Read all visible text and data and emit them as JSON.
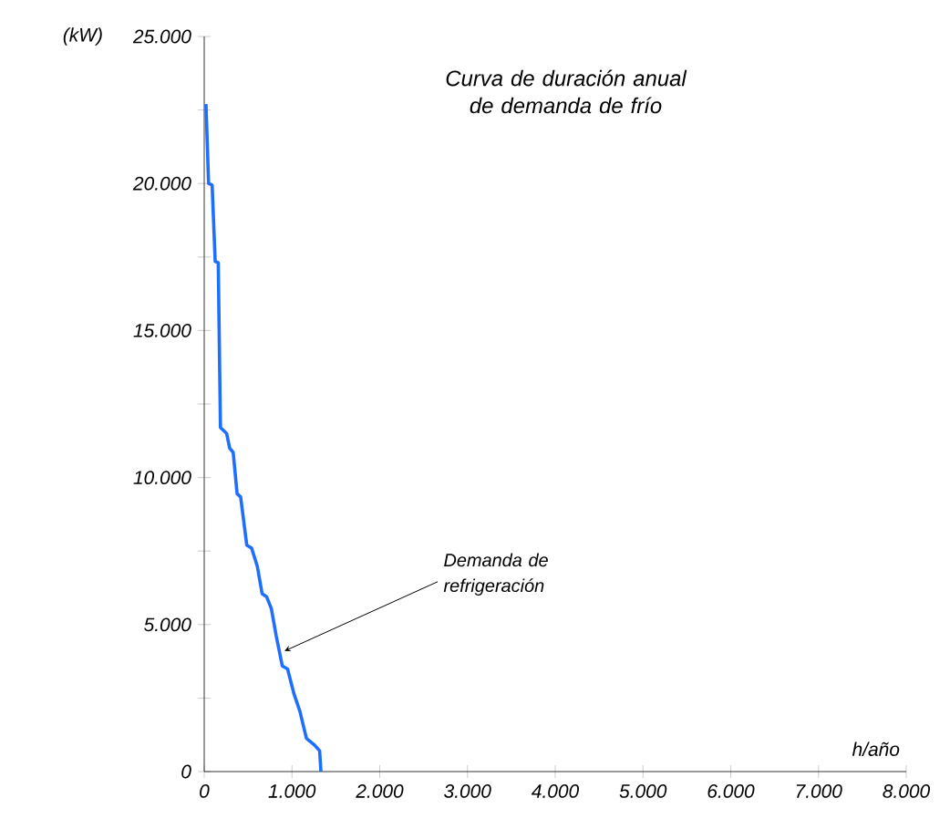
{
  "chart_data": {
    "type": "line",
    "title": "Curva de duración anual de demanda de frío",
    "xlabel": "h/año",
    "ylabel": "(kW)",
    "x": [
      20,
      50,
      90,
      125,
      160,
      180,
      185,
      255,
      290,
      330,
      375,
      415,
      485,
      540,
      605,
      660,
      710,
      765,
      820,
      890,
      950,
      1020,
      1090,
      1165,
      1250,
      1315,
      1330
    ],
    "series": [
      {
        "color": "#1e6fff",
        "values": [
          22700,
          20000,
          19950,
          17350,
          17300,
          12800,
          11700,
          11500,
          11000,
          10850,
          9450,
          9340,
          7700,
          7600,
          6980,
          6050,
          5950,
          5540,
          4620,
          3590,
          3490,
          2670,
          2050,
          1130,
          920,
          710,
          0
        ]
      }
    ],
    "annotations": [
      {
        "text": "Demanda de refrigeración",
        "x": 915,
        "y": 4100
      }
    ],
    "xlim": [
      0,
      8000
    ],
    "ylim": [
      0,
      25000
    ],
    "xticks": [
      0,
      {
        "value": 1000,
        "label": "1.000"
      },
      {
        "value": 2000,
        "label": "2.000"
      },
      {
        "value": 3000,
        "label": "3.000"
      },
      {
        "value": 4000,
        "label": "4.000"
      },
      {
        "value": 5000,
        "label": "5.000"
      },
      {
        "value": 6000,
        "label": "6.000"
      },
      {
        "value": 7000,
        "label": "7.000"
      },
      {
        "value": 8000,
        "label": "8.000"
      }
    ],
    "yticks": [
      0,
      {
        "value": 2500,
        "label": null
      },
      {
        "value": 5000,
        "label": "5.000"
      },
      {
        "value": 7500,
        "label": null
      },
      {
        "value": 10000,
        "label": "10.000"
      },
      {
        "value": 12500,
        "label": null
      },
      {
        "value": 15000,
        "label": "15.000"
      },
      {
        "value": 17500,
        "label": null
      },
      {
        "value": 20000,
        "label": "20.000"
      },
      {
        "value": 22500,
        "label": null
      },
      {
        "value": 25000,
        "label": "25.000"
      }
    ]
  }
}
